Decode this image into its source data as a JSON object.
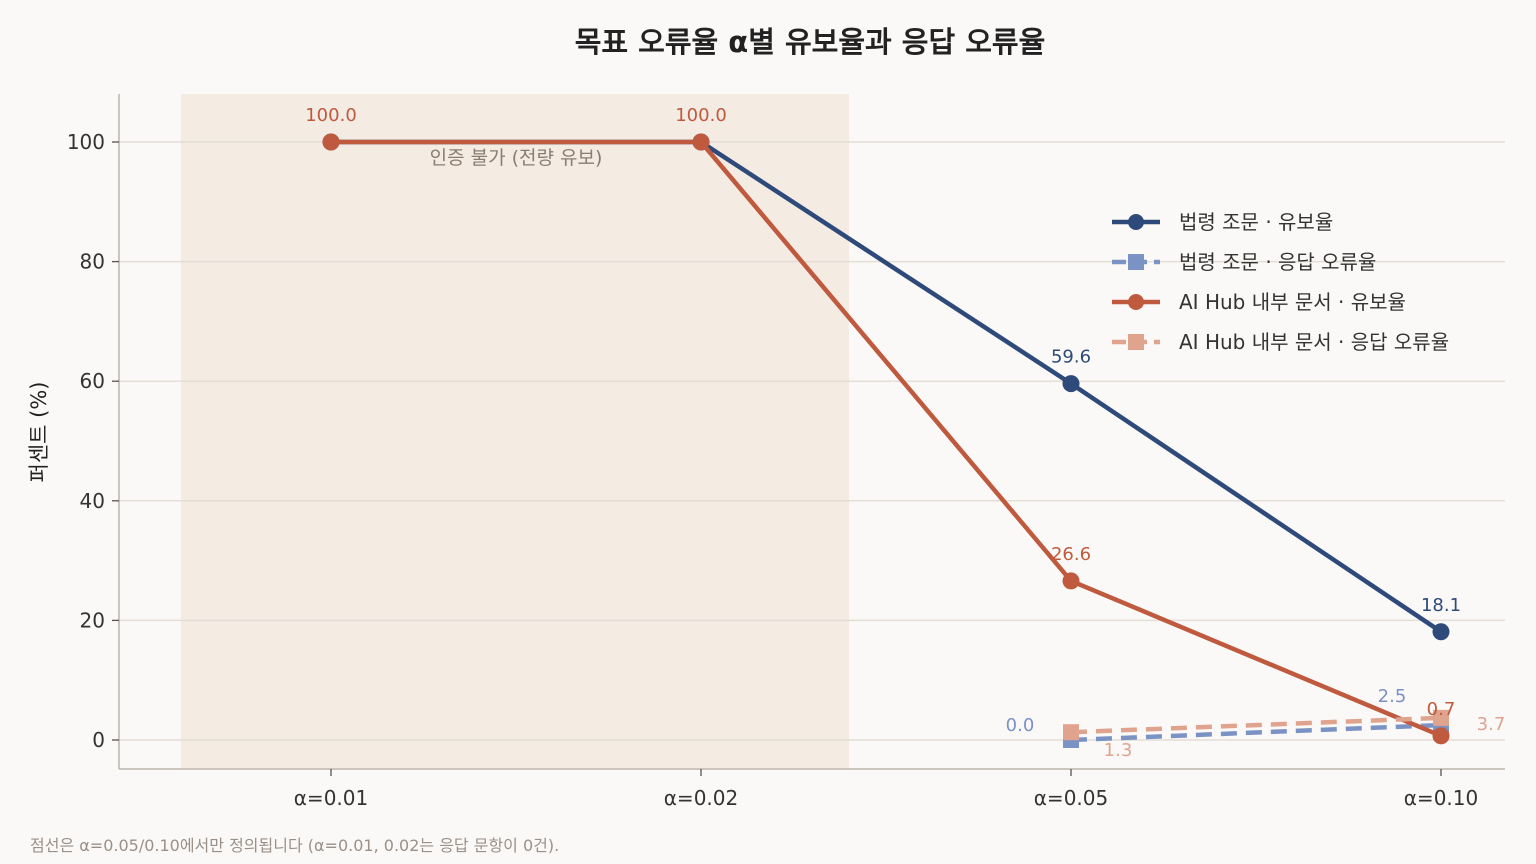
{
  "chart_data": {
    "type": "line",
    "title": "목표 오류율 α별 유보율과 응답 오류율",
    "ylabel": "퍼센트 (%)",
    "xlabel": "",
    "categories": [
      "α=0.01",
      "α=0.02",
      "α=0.05",
      "α=0.10"
    ],
    "ylim": [
      -5,
      108
    ],
    "yticks": [
      0,
      20,
      40,
      60,
      80,
      100
    ],
    "grid": "horizontal",
    "legend_position": "right",
    "shaded_region": {
      "from_category": "α=0.01",
      "to_category": "α=0.02",
      "label": "인증 불가 (전량 유보)"
    },
    "series": [
      {
        "name": "법령 조문 · 유보율",
        "style": "solid",
        "marker": "circle",
        "color": "#2e4a7a",
        "values": [
          100.0,
          100.0,
          59.6,
          18.1
        ],
        "labels": [
          null,
          null,
          "59.6",
          "18.1"
        ]
      },
      {
        "name": "법령 조문 · 응답 오류율",
        "style": "dashed",
        "marker": "square",
        "color": "#7b92c4",
        "values": [
          null,
          null,
          0.0,
          2.5
        ],
        "labels": [
          null,
          null,
          "0.0",
          "2.5"
        ]
      },
      {
        "name": "AI Hub 내부 문서 · 유보율",
        "style": "solid",
        "marker": "circle",
        "color": "#bf5a3e",
        "values": [
          100.0,
          100.0,
          26.6,
          0.7
        ],
        "labels": [
          "100.0",
          "100.0",
          "26.6",
          "0.7"
        ]
      },
      {
        "name": "AI Hub 내부 문서 · 응답 오류율",
        "style": "dashed",
        "marker": "square",
        "color": "#e0a48e",
        "values": [
          null,
          null,
          1.3,
          3.7
        ],
        "labels": [
          null,
          null,
          "1.3",
          "3.7"
        ]
      }
    ],
    "footnote": "점선은 α=0.05/0.10에서만 정의됩니다 (α=0.01, 0.02는 응답 문항이 0건)."
  }
}
